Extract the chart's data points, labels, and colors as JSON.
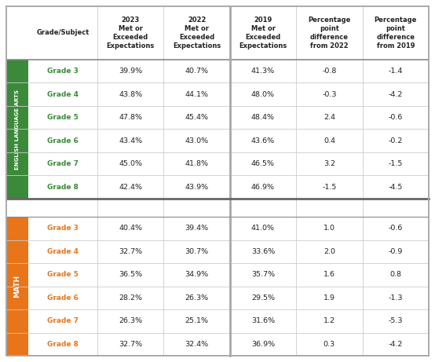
{
  "col_headers": [
    "Grade/Subject",
    "2023\nMet or\nExceeded\nExpectations",
    "2022\nMet or\nExceeded\nExpectations",
    "2019\nMet or\nExceeded\nExpectations",
    "Percentage\npoint\ndifference\nfrom 2022",
    "Percentage\npoint\ndifference\nfrom 2019"
  ],
  "ela_label": "ENGLISH LANGUAGE ARTS",
  "math_label": "MATH",
  "ela_color": "#3a8a3a",
  "math_color": "#e8751a",
  "grade_color_ela": "#3a8a3a",
  "grade_color_math": "#e8751a",
  "ela_rows": [
    [
      "Grade 3",
      "39.9%",
      "40.7%",
      "41.3%",
      "-0.8",
      "-1.4"
    ],
    [
      "Grade 4",
      "43.8%",
      "44.1%",
      "48.0%",
      "-0.3",
      "-4.2"
    ],
    [
      "Grade 5",
      "47.8%",
      "45.4%",
      "48.4%",
      "2.4",
      "-0.6"
    ],
    [
      "Grade 6",
      "43.4%",
      "43.0%",
      "43.6%",
      "0.4",
      "-0.2"
    ],
    [
      "Grade 7",
      "45.0%",
      "41.8%",
      "46.5%",
      "3.2",
      "-1.5"
    ],
    [
      "Grade 8",
      "42.4%",
      "43.9%",
      "46.9%",
      "-1.5",
      "-4.5"
    ]
  ],
  "math_rows": [
    [
      "Grade 3",
      "40.4%",
      "39.4%",
      "41.0%",
      "1.0",
      "-0.6"
    ],
    [
      "Grade 4",
      "32.7%",
      "30.7%",
      "33.6%",
      "2.0",
      "-0.9"
    ],
    [
      "Grade 5",
      "36.5%",
      "34.9%",
      "35.7%",
      "1.6",
      "0.8"
    ],
    [
      "Grade 6",
      "28.2%",
      "26.3%",
      "29.5%",
      "1.9",
      "-1.3"
    ],
    [
      "Grade 7",
      "26.3%",
      "25.1%",
      "31.6%",
      "1.2",
      "-5.3"
    ],
    [
      "Grade 8",
      "32.7%",
      "32.4%",
      "36.9%",
      "0.3",
      "-4.2"
    ]
  ],
  "bg_color": "#ffffff",
  "border_color": "#aaaaaa",
  "sep_color": "#999999",
  "row_line_color": "#cccccc",
  "section_sep_color": "#888888"
}
